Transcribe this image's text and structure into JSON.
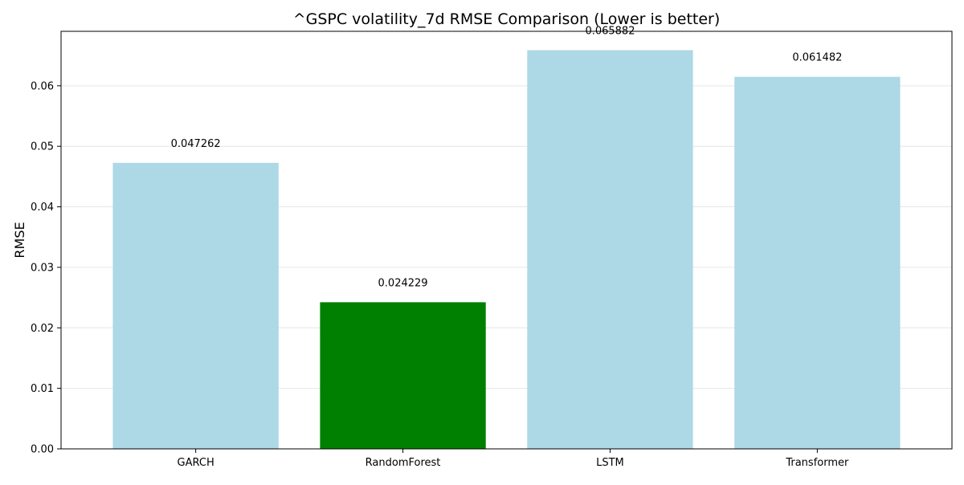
{
  "chart_data": {
    "type": "bar",
    "title": "^GSPC volatility_7d RMSE Comparison (Lower is better)",
    "xlabel": "",
    "ylabel": "RMSE",
    "categories": [
      "GARCH",
      "RandomForest",
      "LSTM",
      "Transformer"
    ],
    "values": [
      0.047262,
      0.024229,
      0.065882,
      0.061482
    ],
    "data_labels": [
      "0.047262",
      "0.024229",
      "0.065882",
      "0.061482"
    ],
    "bar_colors": [
      "#add8e6",
      "#008000",
      "#add8e6",
      "#add8e6"
    ],
    "ylim": [
      0,
      0.069
    ],
    "yticks": [
      0.0,
      0.01,
      0.02,
      0.03,
      0.04,
      0.05,
      0.06
    ],
    "ytick_labels": [
      "0.00",
      "0.01",
      "0.02",
      "0.03",
      "0.04",
      "0.05",
      "0.06"
    ],
    "grid": "horizontal",
    "grid_color": "#e6e6e6",
    "legend": "none"
  }
}
